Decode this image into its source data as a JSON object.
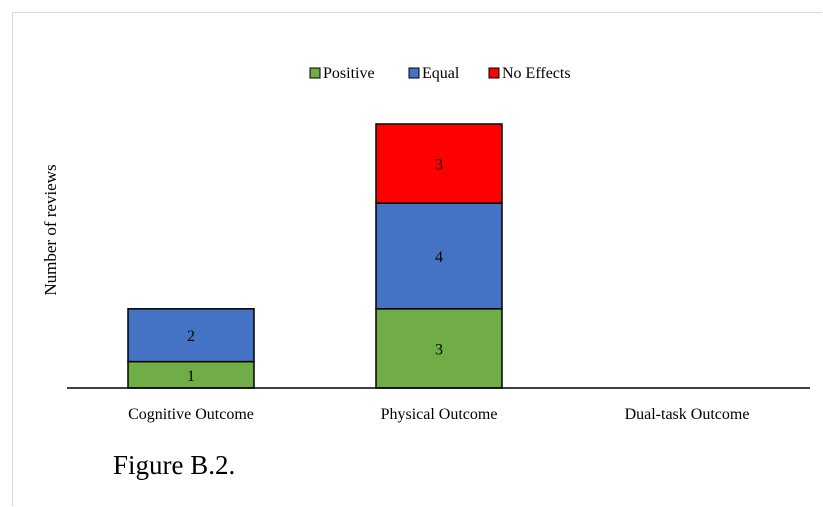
{
  "chart_data": {
    "type": "bar",
    "stacked": true,
    "categories": [
      "Cognitive Outcome",
      "Physical Outcome",
      "Dual-task Outcome"
    ],
    "series": [
      {
        "name": "Positive",
        "values": [
          1,
          3,
          0
        ],
        "color": "#70ad47"
      },
      {
        "name": "Equal",
        "values": [
          2,
          4,
          0
        ],
        "color": "#4472c4"
      },
      {
        "name": "No Effects",
        "values": [
          0,
          3,
          0
        ],
        "color": "#ff0000"
      }
    ],
    "data_labels": true,
    "title": "",
    "xlabel": "",
    "ylabel": "Number of reviews",
    "ylim": [
      0,
      10
    ],
    "y_axis_visible": false,
    "grid": false,
    "legend_position": "top"
  },
  "caption": "Figure B.2."
}
